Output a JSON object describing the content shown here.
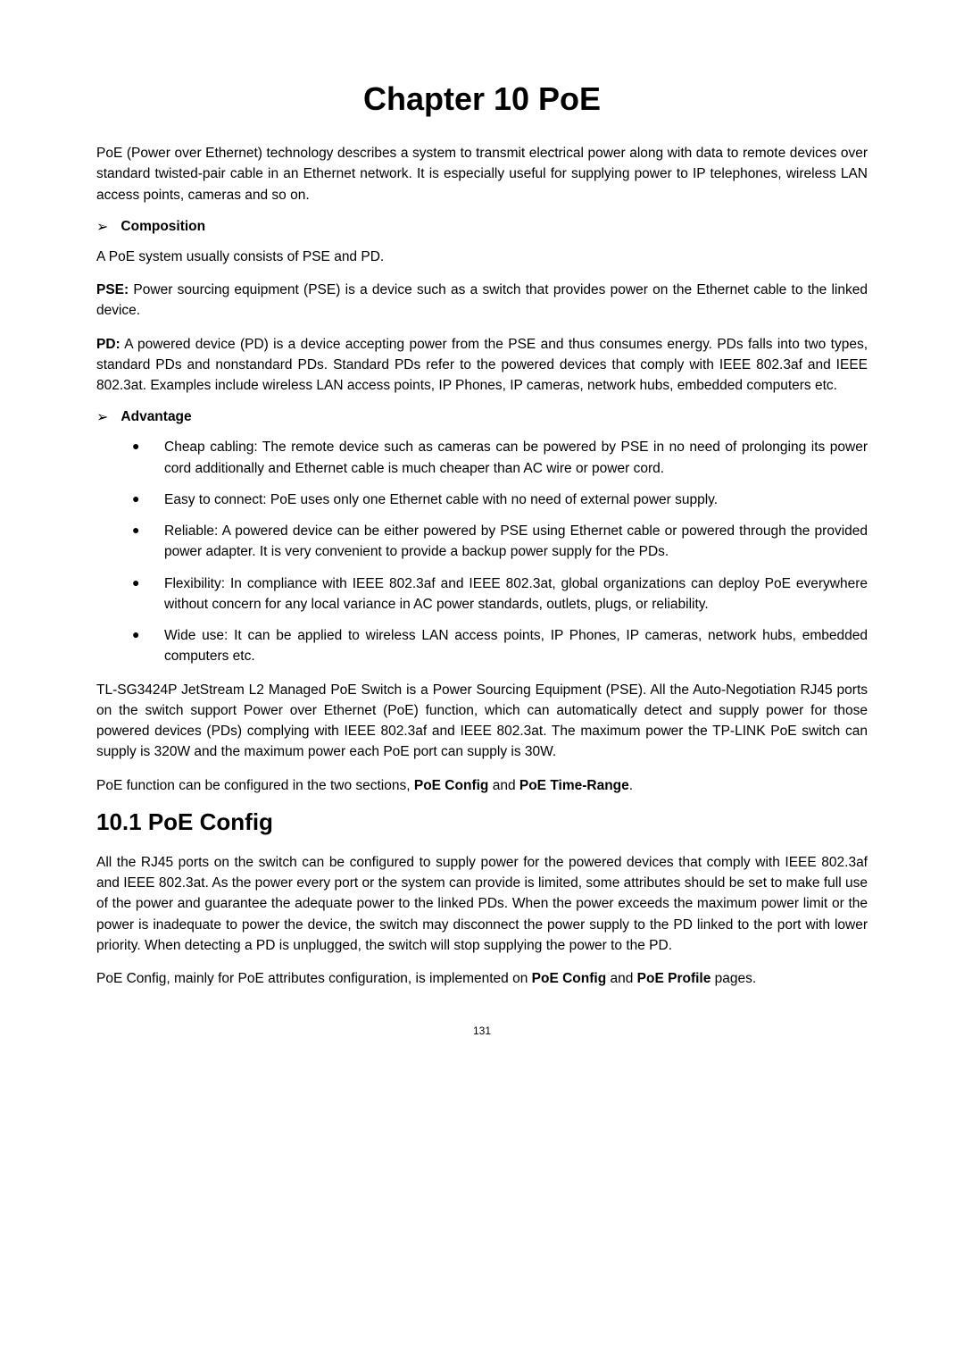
{
  "chapter": {
    "title": "Chapter 10  PoE"
  },
  "intro": "PoE (Power over Ethernet) technology describes a system to transmit electrical power along with data to remote devices over standard twisted-pair cable in an Ethernet network. It is especially useful for supplying power to IP telephones, wireless LAN access points, cameras and so on.",
  "composition": {
    "heading": "Composition",
    "line1": "A PoE system usually consists of PSE and PD.",
    "pse_label": "PSE:",
    "pse_text": " Power sourcing equipment (PSE) is a device such as a switch that provides power on the Ethernet cable to the linked device.",
    "pd_label": "PD:",
    "pd_text": " A powered device (PD) is a device accepting power from the PSE and thus consumes energy. PDs falls into two types, standard PDs and nonstandard PDs. Standard PDs refer to the powered devices that comply with IEEE 802.3af and IEEE 802.3at. Examples include wireless LAN access points, IP Phones, IP cameras, network hubs, embedded computers etc."
  },
  "advantage": {
    "heading": "Advantage",
    "items": [
      "Cheap cabling: The remote device such as cameras can be powered by PSE in no need of prolonging its power cord additionally and Ethernet cable is much cheaper than AC wire or power cord.",
      "Easy to connect: PoE uses only one Ethernet cable with no need of external power supply.",
      "Reliable: A powered device can be either powered by PSE using Ethernet cable or powered through the provided power adapter. It is very convenient to provide a backup power supply for the PDs.",
      "Flexibility: In compliance with IEEE 802.3af and IEEE 802.3at, global organizations can deploy PoE everywhere without concern for any local variance in AC power standards, outlets, plugs, or reliability.",
      "Wide use: It can be applied to wireless LAN access points, IP Phones, IP cameras, network hubs, embedded computers etc."
    ]
  },
  "product_para": "TL-SG3424P JetStream L2 Managed PoE Switch is a Power Sourcing Equipment (PSE). All the Auto-Negotiation RJ45 ports on the switch support Power over Ethernet (PoE) function, which can automatically detect and supply power for those powered devices (PDs) complying with IEEE 802.3af and IEEE 802.3at. The maximum power the TP-LINK PoE switch can supply is 320W and the maximum power each PoE port can supply is 30W.",
  "configured_sentence": {
    "prefix": "PoE function can be configured in the two sections, ",
    "bold1": "PoE Config",
    "mid": " and ",
    "bold2": "PoE Time-Range",
    "suffix": "."
  },
  "section": {
    "title": "10.1 PoE Config",
    "para1": "All the RJ45 ports on the switch can be configured to supply power for the powered devices that comply with IEEE 802.3af and IEEE 802.3at. As the power every port or the system can provide is limited, some attributes should be set to make full use of the power and guarantee the adequate power to the linked PDs. When the power exceeds the maximum power limit or the power is inadequate to power the device, the switch may disconnect the power supply to the PD linked to the port with lower priority. When detecting a PD is unplugged, the switch will stop supplying the power to the PD.",
    "para2_prefix": "PoE Config, mainly for PoE attributes configuration, is implemented on ",
    "para2_bold1": "PoE Config",
    "para2_mid": " and ",
    "para2_bold2": "PoE Profile",
    "para2_suffix": " pages."
  },
  "arrow_glyph": "➢",
  "page_number": "131"
}
